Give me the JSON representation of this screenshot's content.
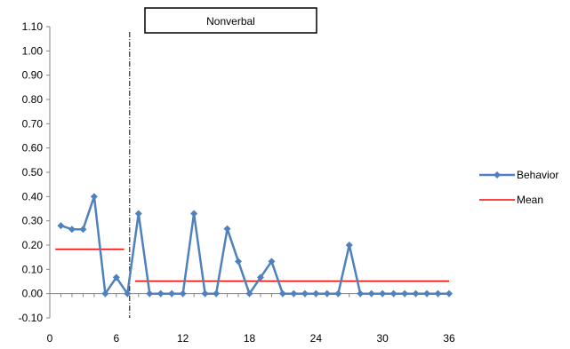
{
  "chart_data": {
    "type": "line",
    "phase_label": "Nonverbal",
    "x": [
      1,
      2,
      3,
      4,
      5,
      6,
      7,
      8,
      9,
      10,
      11,
      12,
      13,
      14,
      15,
      16,
      17,
      18,
      19,
      20,
      21,
      22,
      23,
      24,
      25,
      26,
      27,
      28,
      29,
      30,
      31,
      32,
      33,
      34,
      35,
      36
    ],
    "series": [
      {
        "name": "Behavior",
        "color": "#4F81BD",
        "marker": "diamond",
        "values": [
          0.28,
          0.265,
          0.265,
          0.4,
          0.0,
          0.067,
          0.0,
          0.33,
          0.0,
          0.0,
          0.0,
          0.0,
          0.33,
          0.0,
          0.0,
          0.267,
          0.133,
          0.0,
          0.067,
          0.133,
          0.0,
          0.0,
          0.0,
          0.0,
          0.0,
          0.0,
          0.2,
          0.0,
          0.0,
          0.0,
          0.0,
          0.0,
          0.0,
          0.0,
          0.0,
          0.0
        ]
      }
    ],
    "mean": {
      "name": "Mean",
      "color": "#FF0000",
      "segments": [
        {
          "x_start": 0.5,
          "x_end": 6.7,
          "value": 0.183
        },
        {
          "x_start": 7.7,
          "x_end": 36.0,
          "value": 0.052
        }
      ]
    },
    "phase_change_x": 7.2,
    "xlim": [
      0,
      36
    ],
    "ylim": [
      -0.1,
      1.1
    ],
    "x_ticks": [
      "0",
      "6",
      "12",
      "18",
      "24",
      "30",
      "36"
    ],
    "x_tick_values": [
      0,
      6,
      12,
      18,
      24,
      30,
      36
    ],
    "y_ticks": [
      "1.10",
      "1.00",
      "0.90",
      "0.80",
      "0.70",
      "0.60",
      "0.50",
      "0.40",
      "0.30",
      "0.20",
      "0.10",
      "0.00",
      "-0.10"
    ],
    "y_tick_values": [
      1.1,
      1.0,
      0.9,
      0.8,
      0.7,
      0.6,
      0.5,
      0.4,
      0.3,
      0.2,
      0.1,
      0.0,
      -0.1
    ],
    "legend": {
      "position": "right",
      "entries": [
        "Behavior",
        "Mean"
      ]
    },
    "grid": false
  }
}
